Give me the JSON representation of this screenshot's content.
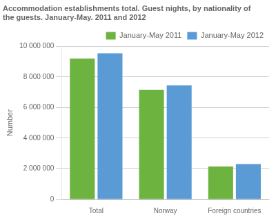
{
  "chart_data": {
    "type": "bar",
    "title": [
      "Accommodation establishments total. Guest nights, by nationality of",
      "the guests. January-May. 2011 and 2012"
    ],
    "ylabel": "Number",
    "categories": [
      "Total",
      "Norway",
      "Foreign countries"
    ],
    "series": [
      {
        "name": "January-May 2011",
        "color": "#6db33f",
        "values": [
          9200000,
          7150000,
          2150000
        ]
      },
      {
        "name": "January-May 2012",
        "color": "#5b9bd5",
        "values": [
          9550000,
          7450000,
          2300000
        ]
      }
    ],
    "ylim": [
      0,
      10000000
    ],
    "yticks": [
      0,
      {
        "value": 2000000,
        "label": "2 000 000"
      },
      {
        "value": 4000000,
        "label": "4 000 000"
      },
      {
        "value": 6000000,
        "label": "6 000 000"
      },
      {
        "value": 8000000,
        "label": "8 000 000"
      },
      {
        "value": 10000000,
        "label": "10 000 000"
      }
    ],
    "grid": true,
    "legend": "upper right"
  }
}
